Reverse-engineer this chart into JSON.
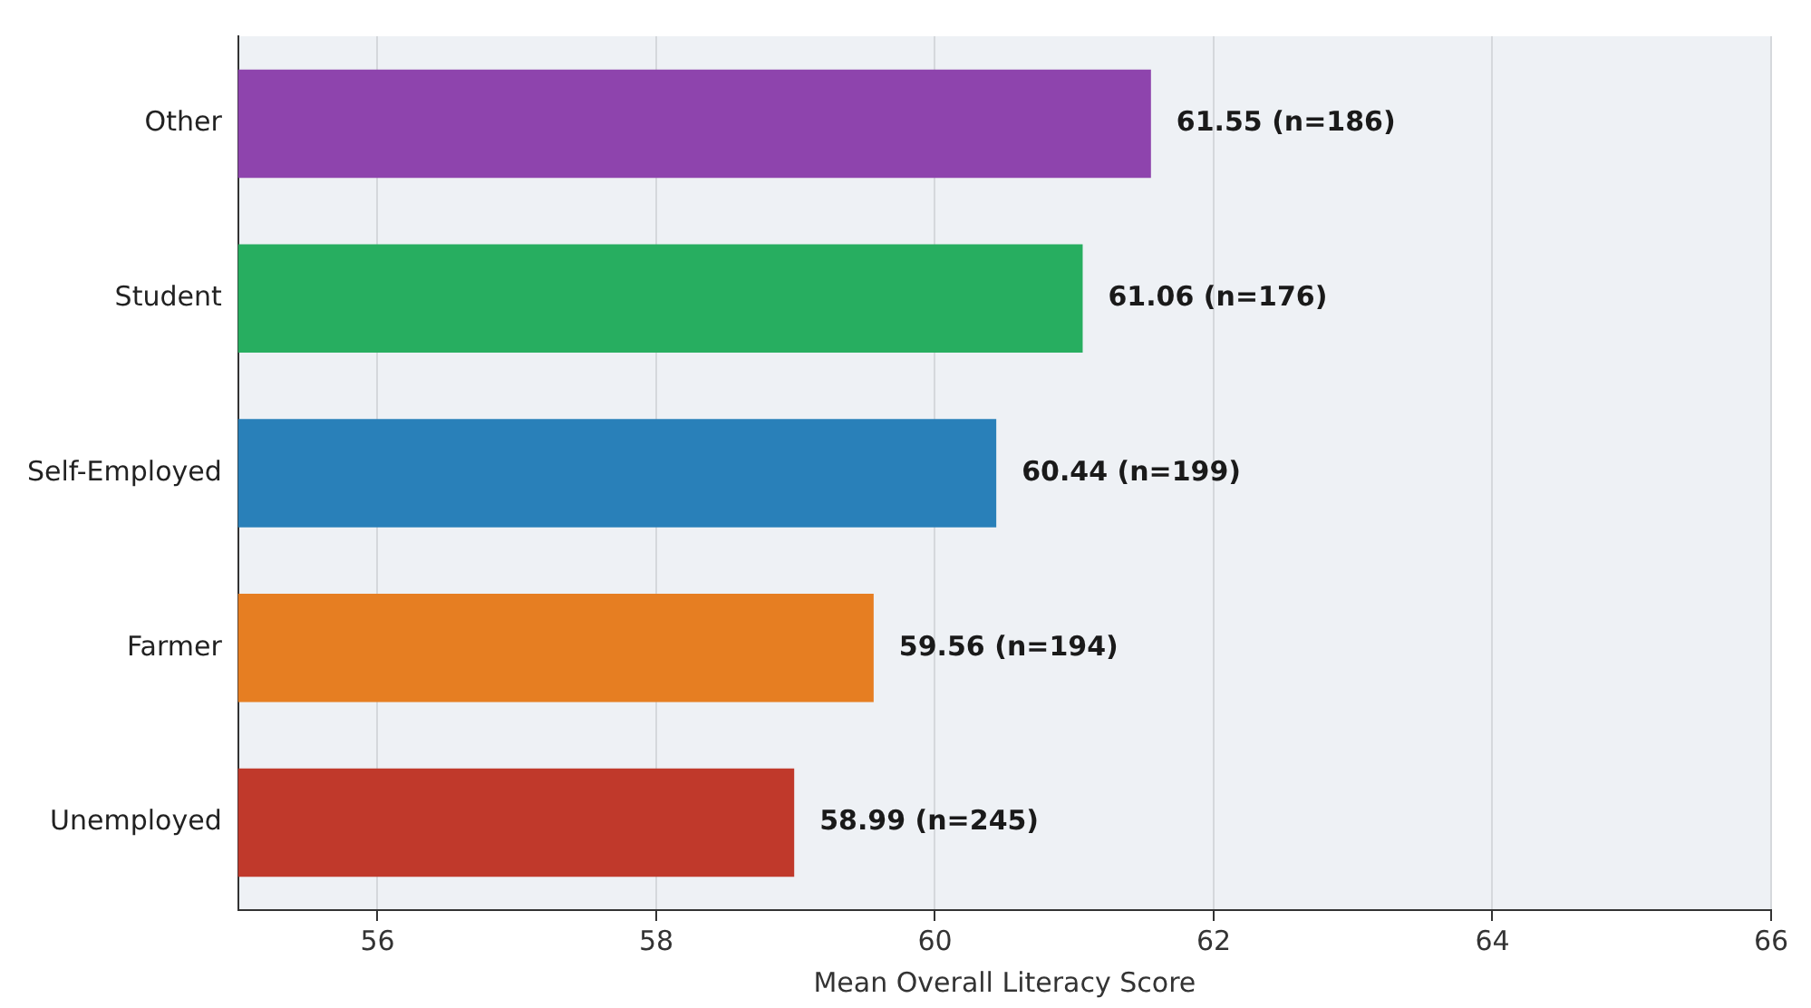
{
  "chart_data": {
    "type": "bar",
    "orientation": "horizontal",
    "xlabel": "Mean Overall Literacy Score",
    "categories": [
      "Other",
      "Student",
      "Self-Employed",
      "Farmer",
      "Unemployed"
    ],
    "values": [
      61.55,
      61.06,
      60.44,
      59.56,
      58.99
    ],
    "colors": [
      "#8e44ad",
      "#27ae60",
      "#2980b9",
      "#e67e22",
      "#c0392b"
    ],
    "value_labels": [
      "61.55 (n=186)",
      "61.06 (n=176)",
      "60.44 (n=199)",
      "59.56 (n=194)",
      "58.99 (n=245)"
    ],
    "xlim": [
      55,
      66
    ],
    "xticks": [
      56,
      58,
      60,
      62,
      64,
      66
    ],
    "grid": "x",
    "legend": false
  }
}
